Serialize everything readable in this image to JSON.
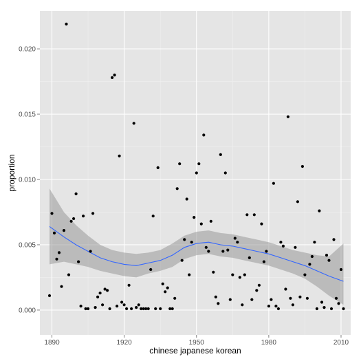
{
  "chart_data": {
    "type": "scatter",
    "title": "",
    "xlabel": "chinese japanese korean",
    "ylabel": "proportion",
    "xlim": [
      1885,
      2014
    ],
    "ylim": [
      -0.0019,
      0.0229
    ],
    "x_ticks": [
      1890,
      1920,
      1950,
      1980,
      2010
    ],
    "x_tick_labels": [
      "1890",
      "1920",
      "1950",
      "1980",
      "2010"
    ],
    "y_ticks": [
      0,
      0.005,
      0.01,
      0.015,
      0.02
    ],
    "y_tick_labels": [
      "0.000",
      "0.005",
      "0.010",
      "0.015",
      "0.020"
    ],
    "grid": true,
    "colors": {
      "panel": "#e5e5e5",
      "grid_major": "#ffffff",
      "grid_minor": "#f0f0f0",
      "point": "#000000",
      "smooth_line": "#3366ff",
      "ribbon": "#999999"
    },
    "points": {
      "x": [
        1889,
        1890,
        1891,
        1892,
        1893,
        1894,
        1895,
        1896,
        1897,
        1898,
        1899,
        1900,
        1901,
        1902,
        1903,
        1904,
        1905,
        1906,
        1907,
        1908,
        1909,
        1910,
        1911,
        1912,
        1913,
        1914,
        1915,
        1916,
        1917,
        1918,
        1919,
        1920,
        1921,
        1922,
        1923,
        1924,
        1925,
        1926,
        1927,
        1928,
        1929,
        1930,
        1931,
        1932,
        1933,
        1934,
        1935,
        1936,
        1937,
        1938,
        1939,
        1940,
        1941,
        1942,
        1943,
        1944,
        1945,
        1946,
        1947,
        1948,
        1949,
        1950,
        1951,
        1952,
        1953,
        1954,
        1955,
        1956,
        1957,
        1958,
        1959,
        1960,
        1961,
        1962,
        1963,
        1964,
        1965,
        1966,
        1967,
        1968,
        1969,
        1970,
        1971,
        1972,
        1973,
        1974,
        1975,
        1976,
        1977,
        1978,
        1979,
        1980,
        1981,
        1982,
        1983,
        1984,
        1985,
        1986,
        1987,
        1988,
        1989,
        1990,
        1991,
        1992,
        1993,
        1994,
        1995,
        1996,
        1997,
        1998,
        1999,
        2000,
        2001,
        2002,
        2003,
        2004,
        2005,
        2006,
        2007,
        2008,
        2009,
        2010,
        2011
      ],
      "y": [
        0.0011,
        0.0074,
        0.0059,
        0.0039,
        0.0044,
        0.0018,
        0.0061,
        0.0219,
        0.0027,
        0.0068,
        0.007,
        0.0089,
        0.0037,
        0.0003,
        0.0072,
        0.0001,
        0.0001,
        0.0045,
        0.0074,
        0.0002,
        0.001,
        0.0013,
        0.0004,
        0.0016,
        0.0015,
        0.0001,
        0.0178,
        0.018,
        0.0003,
        0.0118,
        0.0006,
        0.0004,
        0.0001,
        0.0019,
        0.0001,
        0.0143,
        0.0002,
        0.0004,
        0.0001,
        0.0001,
        0.0001,
        0.0001,
        0.0031,
        0.0072,
        0.0001,
        0.0109,
        0.0001,
        0.002,
        0.0014,
        0.0017,
        0.0001,
        0.0001,
        0.0009,
        0.0093,
        0.0112,
        0.0038,
        0.0054,
        0.0085,
        0.0027,
        0.0052,
        0.0071,
        0.0105,
        0.0112,
        0.0066,
        0.0134,
        0.0048,
        0.0045,
        0.0068,
        0.0029,
        0.001,
        0.0005,
        0.0119,
        0.0045,
        0.0105,
        0.0046,
        0.0008,
        0.0027,
        0.0055,
        0.0052,
        0.0025,
        0.0004,
        0.0027,
        0.0073,
        0.004,
        0.0008,
        0.0073,
        0.0015,
        0.0019,
        0.0066,
        0.0037,
        0.0045,
        0.0003,
        0.0008,
        0.0097,
        0.0003,
        0.0001,
        0.0052,
        0.0049,
        0.0016,
        0.0148,
        0.0009,
        0.0004,
        0.0048,
        0.0083,
        0.001,
        0.011,
        0.0027,
        0.0009,
        0.0035,
        0.0041,
        0.0052,
        0.0001,
        0.0076,
        0.0006,
        0.0002,
        0.0042,
        0.0038,
        0.0001,
        0.0054,
        0.0009,
        0.0005,
        0.0031,
        0.0001
      ]
    },
    "smooth": {
      "x": [
        1889,
        1895,
        1900,
        1905,
        1910,
        1915,
        1920,
        1925,
        1930,
        1935,
        1940,
        1945,
        1950,
        1955,
        1960,
        1965,
        1970,
        1975,
        1980,
        1985,
        1990,
        1995,
        2000,
        2005,
        2011
      ],
      "y": [
        0.0064,
        0.0056,
        0.005,
        0.0045,
        0.004,
        0.0037,
        0.0035,
        0.0034,
        0.0036,
        0.0038,
        0.0042,
        0.0048,
        0.0051,
        0.0052,
        0.005,
        0.0049,
        0.0047,
        0.0045,
        0.0043,
        0.004,
        0.0037,
        0.0034,
        0.003,
        0.0026,
        0.0022
      ],
      "lower": [
        0.0035,
        0.0037,
        0.0035,
        0.0033,
        0.003,
        0.0028,
        0.0026,
        0.0025,
        0.0028,
        0.003,
        0.0033,
        0.0039,
        0.0042,
        0.0043,
        0.0041,
        0.004,
        0.0038,
        0.0036,
        0.0034,
        0.0031,
        0.0028,
        0.0024,
        0.0018,
        0.0011,
        0.0004
      ],
      "upper": [
        0.0093,
        0.0075,
        0.0065,
        0.0057,
        0.005,
        0.0046,
        0.0044,
        0.0043,
        0.0044,
        0.0046,
        0.0051,
        0.0057,
        0.006,
        0.0061,
        0.0059,
        0.0058,
        0.0056,
        0.0054,
        0.0052,
        0.0049,
        0.0046,
        0.0044,
        0.0042,
        0.0041,
        0.0051
      ]
    }
  }
}
